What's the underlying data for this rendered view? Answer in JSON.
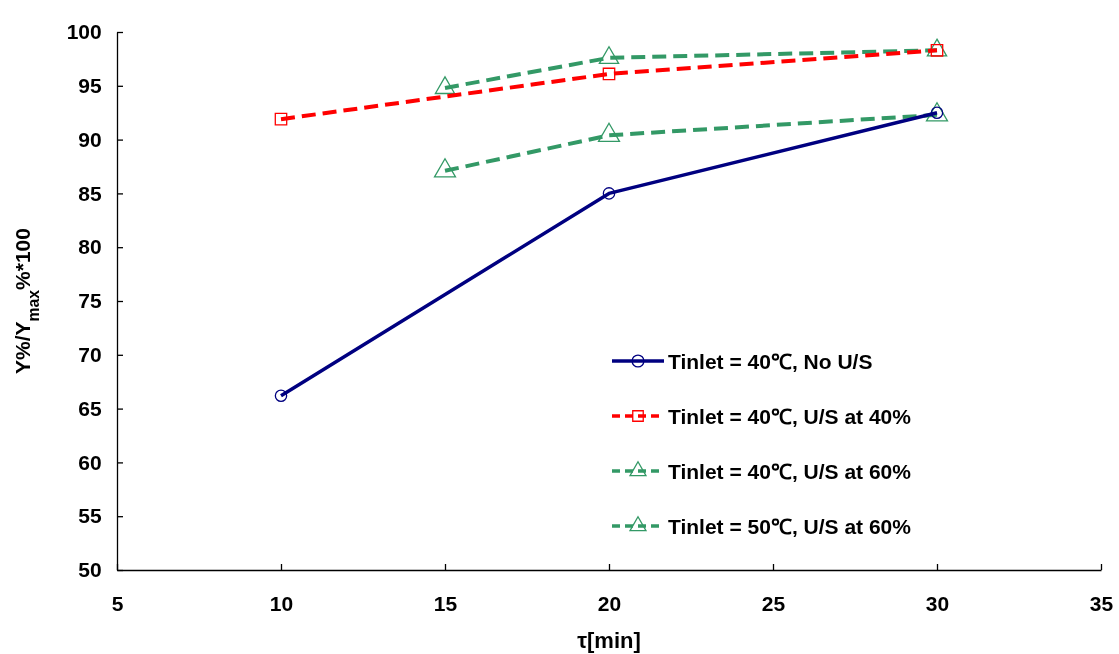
{
  "chart_data": {
    "type": "line",
    "xlabel": "τ[min]",
    "ylabel": "Y%/Y$_{max}$%*100",
    "xlim": [
      5,
      35
    ],
    "xticks": [
      5,
      10,
      15,
      20,
      25,
      30,
      35
    ],
    "ylim": [
      50,
      100
    ],
    "yticks": [
      50,
      55,
      60,
      65,
      70,
      75,
      80,
      85,
      90,
      95,
      100
    ],
    "grid": false,
    "legend": "bottom right",
    "series": [
      {
        "name": "Tinlet = 40℃, No U/S",
        "color": "#000080",
        "x": [
          10,
          20,
          30
        ],
        "values": [
          66.2,
          85.0,
          92.5
        ],
        "marker": "circle",
        "line_style": "solid"
      },
      {
        "name": "Tinlet = 40℃, U/S at 40%",
        "color": "#ff0000",
        "x": [
          10,
          20,
          30
        ],
        "values": [
          91.9,
          96.1,
          98.3
        ],
        "marker": "square",
        "line_style": "dashed"
      },
      {
        "name": "Tinlet = 40℃, U/S at 60%",
        "color": "#339966",
        "x": [
          15,
          20,
          30
        ],
        "values": [
          94.8,
          97.6,
          98.3
        ],
        "marker": "triangle",
        "line_style": "dashed"
      },
      {
        "name": "Tinlet = 50℃, U/S at 60%",
        "color": "#339966",
        "x": [
          15,
          20,
          30
        ],
        "values": [
          87.1,
          90.4,
          92.3
        ],
        "marker": "triangle",
        "line_style": "dashed"
      }
    ]
  }
}
